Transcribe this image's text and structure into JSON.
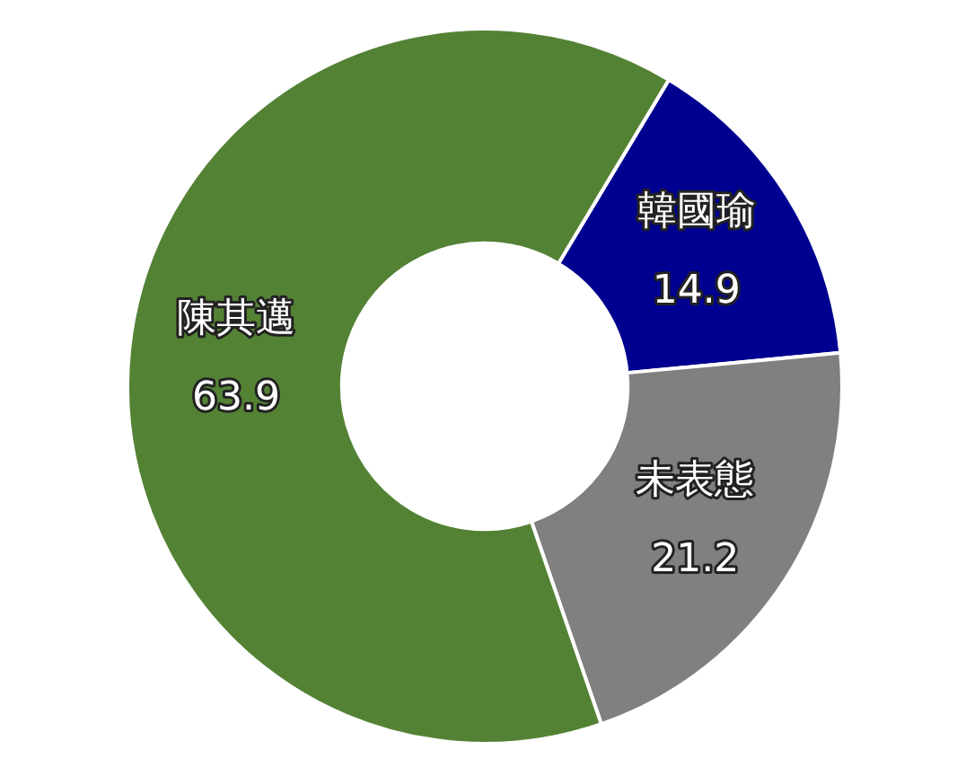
{
  "chart_data": {
    "type": "donut",
    "categories": [
      "韓國瑜",
      "未表態",
      "陳其邁"
    ],
    "values": [
      14.9,
      21.2,
      63.9
    ],
    "colors": [
      "#000090",
      "#808080",
      "#548235"
    ],
    "data_labels": true,
    "legend": false
  }
}
